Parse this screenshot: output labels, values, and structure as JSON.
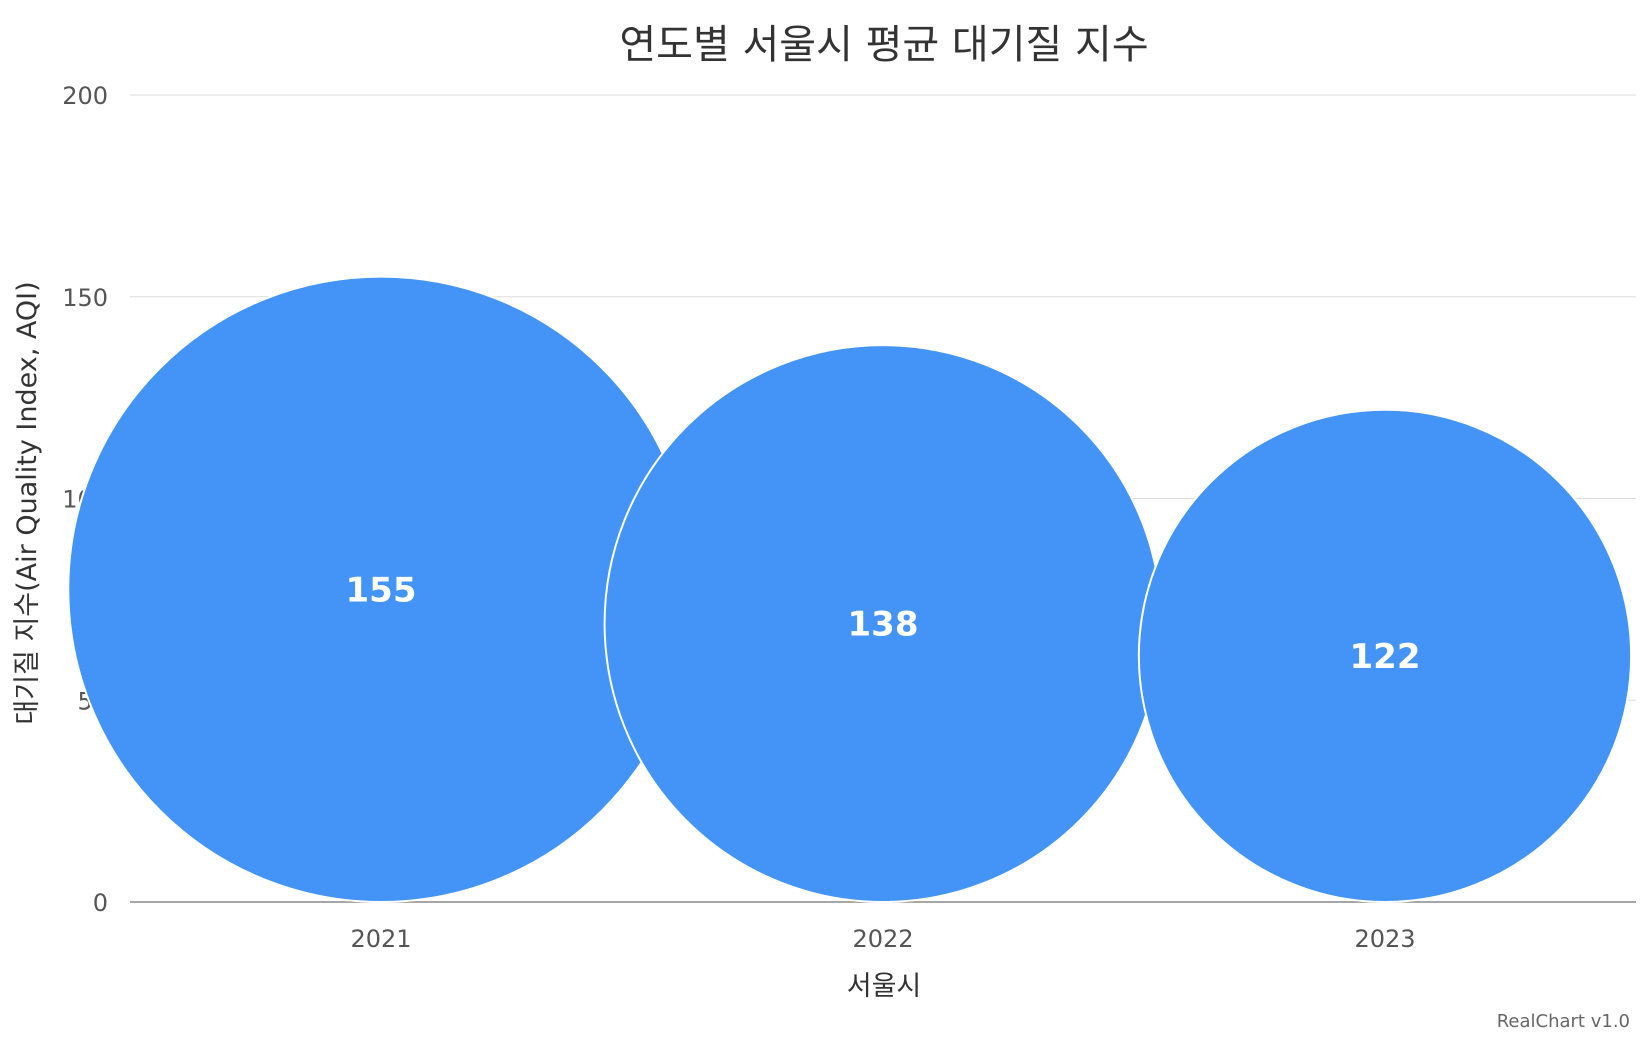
{
  "chart_data": {
    "type": "bubble",
    "title": "연도별 서울시 평균 대기질 지수",
    "xlabel": "서울시",
    "ylabel": "대기질 지수(Air Quality Index, AQI)",
    "categories": [
      "2021",
      "2022",
      "2023"
    ],
    "values": [
      155,
      138,
      122
    ],
    "labels": [
      "155",
      "138",
      "122"
    ],
    "ylim": [
      0,
      200
    ],
    "yticks": [
      "0",
      "50",
      "100",
      "150",
      "200"
    ],
    "grid": true,
    "legend": "none",
    "bubble_color": "#4494F7"
  },
  "credit": "RealChart v1.0"
}
